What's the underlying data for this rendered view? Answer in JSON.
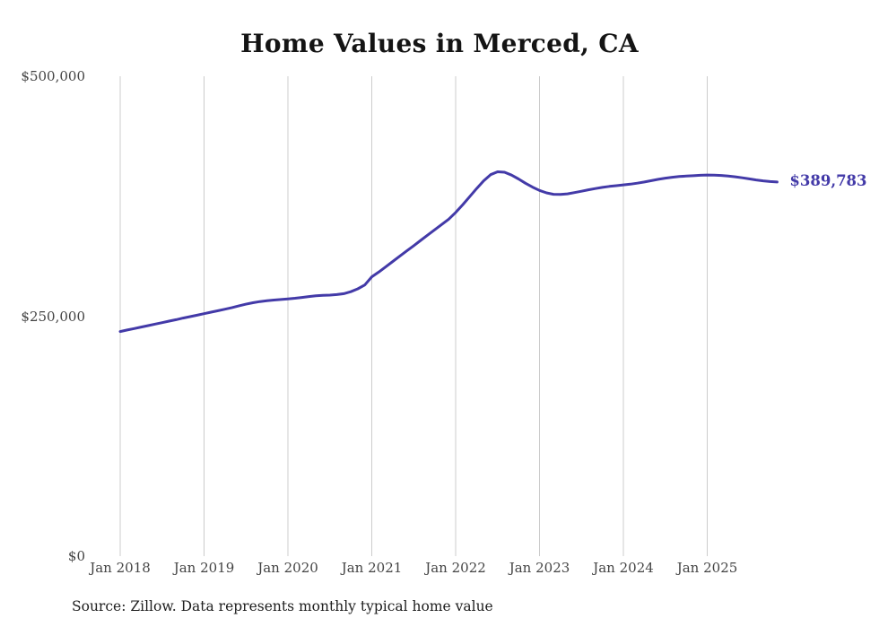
{
  "page": {
    "source_note": "Source: Zillow. Data represents monthly typical home value"
  },
  "chart_data": {
    "type": "line",
    "title": "Home Values in Merced, CA",
    "series_name": "Typical home value (monthly)",
    "unit": "USD",
    "frequency": "monthly",
    "x_start": "Jan 2018",
    "x_end": "Nov 2025",
    "x_ticks": [
      "Jan 2018",
      "Jan 2019",
      "Jan 2020",
      "Jan 2021",
      "Jan 2022",
      "Jan 2023",
      "Jan 2024",
      "Jan 2025"
    ],
    "y_ticks": [
      {
        "label": "$0",
        "value": 0
      },
      {
        "label": "$250,000",
        "value": 250000
      },
      {
        "label": "$500,000",
        "value": 500000
      }
    ],
    "ylim": [
      0,
      500000
    ],
    "grid": "vertical-only",
    "legend": "none",
    "line_color": "#433AA8",
    "gridline_color": "#cccccc",
    "latest_value": 389783,
    "end_label": "$389,783",
    "values": [
      234000,
      235600,
      237100,
      238700,
      240200,
      241800,
      243300,
      244900,
      246400,
      248000,
      249500,
      251000,
      252600,
      254200,
      255700,
      257300,
      259000,
      260800,
      262500,
      264000,
      265200,
      266100,
      266800,
      267400,
      268000,
      268700,
      269500,
      270500,
      271300,
      271800,
      272000,
      272500,
      273500,
      275500,
      278500,
      282500,
      291000,
      296000,
      301500,
      307000,
      312500,
      318000,
      323500,
      329000,
      334500,
      340000,
      345500,
      351000,
      358000,
      366000,
      374500,
      383000,
      391000,
      397500,
      400500,
      400000,
      397000,
      393000,
      388500,
      384500,
      381000,
      378500,
      377000,
      376800,
      377500,
      378800,
      380200,
      381700,
      383000,
      384200,
      385200,
      386000,
      386800,
      387600,
      388600,
      389800,
      391200,
      392600,
      393800,
      394800,
      395500,
      396000,
      396400,
      396800,
      397100,
      397000,
      396600,
      396000,
      395200,
      394200,
      393100,
      392000,
      391000,
      390300,
      389783
    ]
  }
}
